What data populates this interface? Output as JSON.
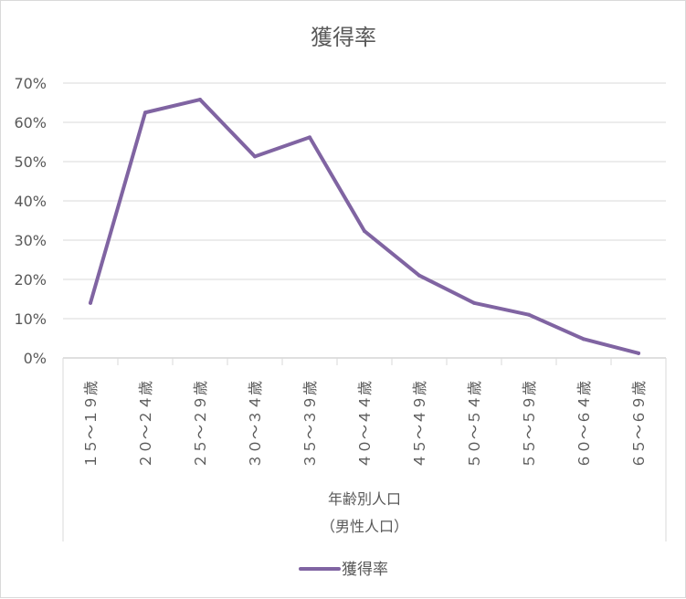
{
  "chart_data": {
    "type": "line",
    "title": "獲得率",
    "categories": [
      "１５～１９歳",
      "２０～２４歳",
      "２５～２９歳",
      "３０～３４歳",
      "３５～３９歳",
      "４０～４４歳",
      "４５～４９歳",
      "５０～５４歳",
      "５５～５９歳",
      "６０～６４歳",
      "６５～６９歳"
    ],
    "series": [
      {
        "name": "獲得率",
        "color": "#8064a2",
        "values": [
          0.14,
          0.625,
          0.658,
          0.513,
          0.562,
          0.323,
          0.21,
          0.14,
          0.11,
          0.048,
          0.012
        ]
      }
    ],
    "ylim": [
      0,
      0.7
    ],
    "yticks": [
      "0%",
      "10%",
      "20%",
      "30%",
      "40%",
      "50%",
      "60%",
      "70%"
    ],
    "xlabel_lines": [
      "年齢別人口",
      "（男性人口）"
    ],
    "grid": true,
    "legend": "bottom"
  }
}
